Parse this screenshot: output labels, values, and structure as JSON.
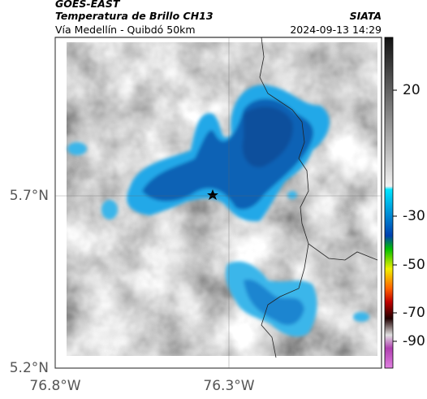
{
  "header": {
    "title": "GOES-EAST",
    "subtitle": "Temperatura de Brillo CH13",
    "source": "SIATA",
    "route": "Vía Medellín - Quibdó 50km",
    "timestamp": "2024-09-13 14:29"
  },
  "map": {
    "lat_ticks": [
      {
        "value": 5.7,
        "label": "5.7°N"
      },
      {
        "value": 5.2,
        "label": "5.2°N"
      }
    ],
    "lon_ticks": [
      {
        "value": -76.8,
        "label": "76.8°W"
      },
      {
        "value": -76.3,
        "label": "76.3°W"
      }
    ]
  },
  "colorbar": {
    "ticks": [
      20,
      -30,
      -50,
      -70,
      -90
    ]
  }
}
